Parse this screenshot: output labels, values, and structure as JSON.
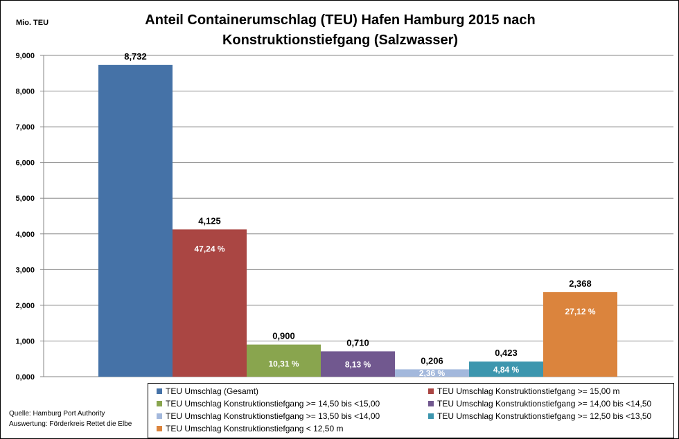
{
  "chart_data": {
    "type": "bar",
    "title_line1": "Anteil Containerumschlag (TEU) Hafen Hamburg 2015 nach",
    "title_line2": "Konstruktionstiefgang (Salzwasser)",
    "ylabel": "Mio. TEU",
    "ylim": [
      0,
      9
    ],
    "yticks": [
      0,
      1,
      2,
      3,
      4,
      5,
      6,
      7,
      8,
      9
    ],
    "ytick_labels": [
      "0,000",
      "1,000",
      "2,000",
      "3,000",
      "4,000",
      "5,000",
      "6,000",
      "7,000",
      "8,000",
      "9,000"
    ],
    "grid": true,
    "legend_position": "bottom",
    "series": [
      {
        "name": "TEU Umschlag (Gesamt)",
        "value": 8.732,
        "label": "8,732",
        "pct_label": "",
        "color": "#4572A7"
      },
      {
        "name": "TEU Umschlag  Konstruktionstiefgang >= 15,00 m",
        "value": 4.125,
        "label": "4,125",
        "pct_label": "47,24 %",
        "color": "#AA4643"
      },
      {
        "name": "TEU Umschlag Konstruktionstiefgang >= 14,50 bis <15,00",
        "value": 0.9,
        "label": "0,900",
        "pct_label": "10,31 %",
        "color": "#89A54E"
      },
      {
        "name": "TEU Umschlag Konstruktionstiefgang >= 14,00 bis <14,50",
        "value": 0.71,
        "label": "0,710",
        "pct_label": "8,13 %",
        "color": "#71588F"
      },
      {
        "name": "TEU Umschlag Konstruktionstiefgang >= 13,50 bis <14,00",
        "value": 0.206,
        "label": "0,206",
        "pct_label": "2,36 %",
        "color": "#A3B8DC"
      },
      {
        "name": "TEU Umschlag Konstruktionstiefgang >= 12,50 bis <13,50",
        "value": 0.423,
        "label": "0,423",
        "pct_label": "4,84 %",
        "color": "#3D96AE"
      },
      {
        "name": "TEU Umschlag Konstruktionstiefgang < 12,50 m",
        "value": 2.368,
        "label": "2,368",
        "pct_label": "27,12 %",
        "color": "#DB843D"
      }
    ]
  },
  "footer": {
    "source_line1": "Quelle: Hamburg Port Authority",
    "source_line2": "Auswertung: Förderkreis Rettet die Elbe"
  }
}
